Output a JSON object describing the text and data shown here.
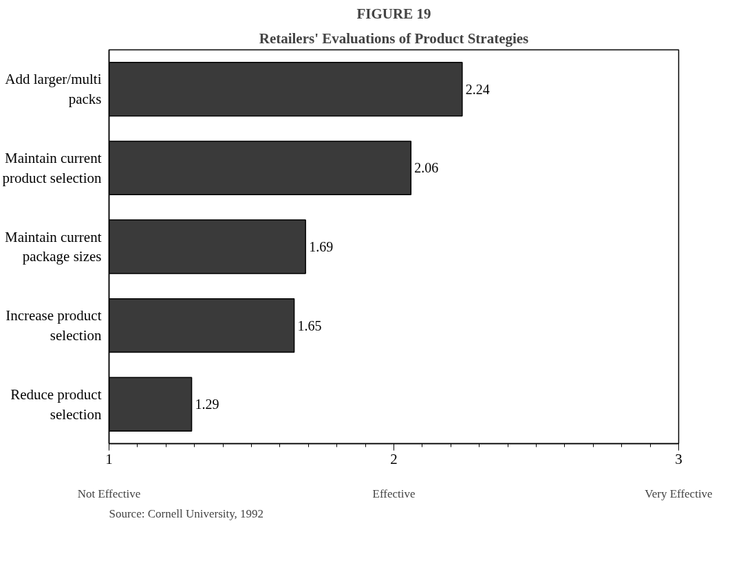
{
  "chart_data": {
    "type": "bar",
    "orientation": "horizontal",
    "title": "FIGURE 19",
    "subtitle": "Retailers' Evaluations of Product Strategies",
    "categories": [
      "Add larger/multi packs",
      "Maintain current product selection",
      "Maintain current package sizes",
      "Increase product selection",
      "Reduce product selection"
    ],
    "values": [
      2.24,
      2.06,
      1.69,
      1.65,
      1.29
    ],
    "color": "#3a3a3a",
    "data_labels": true,
    "xlim": [
      1,
      3
    ],
    "xticks": [
      1,
      2,
      3
    ],
    "grid": false,
    "annotations": [
      "Not Effective",
      "Effective",
      "Very Effective",
      "Source: Cornell University, 1992"
    ]
  }
}
